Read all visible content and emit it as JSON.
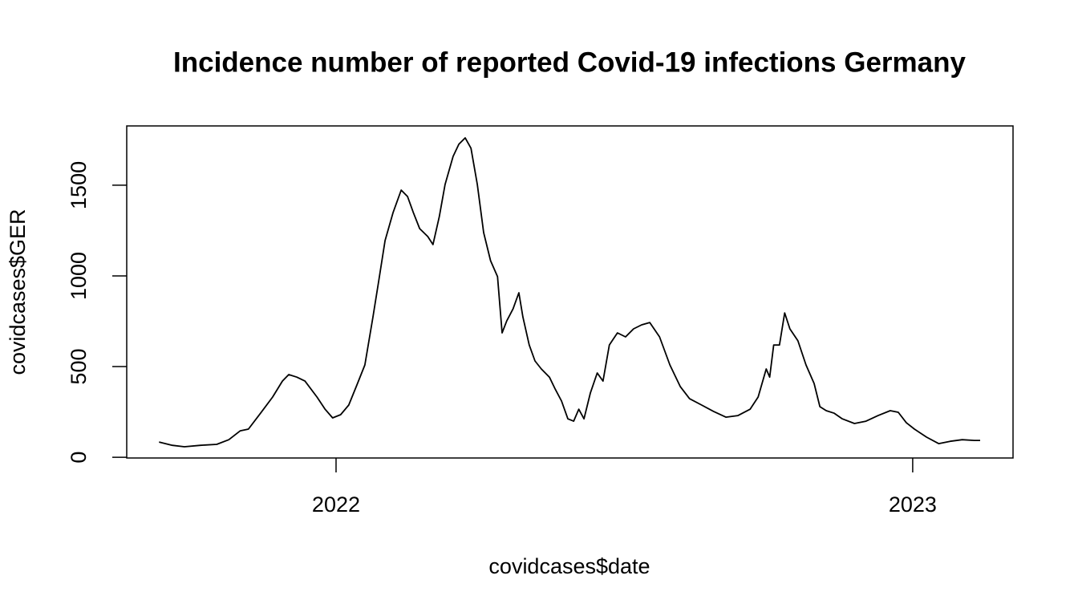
{
  "chart_data": {
    "type": "line",
    "title": "Incidence number of reported Covid-19 infections Germany",
    "x_label": "covidcases$date",
    "y_label": "covidcases$GER",
    "x": [
      2021.693,
      2021.716,
      2021.737,
      2021.765,
      2021.793,
      2021.814,
      2021.834,
      2021.848,
      2021.869,
      2021.89,
      2021.907,
      2021.918,
      2021.932,
      2021.946,
      2021.967,
      2021.981,
      2021.994,
      2022.008,
      2022.022,
      2022.036,
      2022.05,
      2022.064,
      2022.074,
      2022.085,
      2022.099,
      2022.113,
      2022.124,
      2022.134,
      2022.145,
      2022.159,
      2022.168,
      2022.179,
      2022.189,
      2022.203,
      2022.213,
      2022.224,
      2022.234,
      2022.245,
      2022.256,
      2022.268,
      2022.28,
      2022.288,
      2022.296,
      2022.307,
      2022.317,
      2022.324,
      2022.335,
      2022.345,
      2022.356,
      2022.37,
      2022.38,
      2022.391,
      2022.402,
      2022.412,
      2022.421,
      2022.43,
      2022.441,
      2022.453,
      2022.463,
      2022.474,
      2022.488,
      2022.502,
      2022.516,
      2022.53,
      2022.544,
      2022.561,
      2022.579,
      2022.597,
      2022.613,
      2022.634,
      2022.655,
      2022.676,
      2022.697,
      2022.718,
      2022.732,
      2022.746,
      2022.752,
      2022.759,
      2022.769,
      2022.778,
      2022.787,
      2022.801,
      2022.815,
      2022.829,
      2022.839,
      2022.85,
      2022.864,
      2022.878,
      2022.899,
      2022.919,
      2022.94,
      2022.961,
      2022.975,
      2022.989,
      2023.003,
      2023.024,
      2023.045,
      2023.065,
      2023.086,
      2023.107,
      2023.117
    ],
    "series": [
      {
        "color": "#000000",
        "values": [
          84,
          66,
          58,
          66,
          71,
          97,
          146,
          155,
          243,
          332,
          420,
          456,
          442,
          420,
          332,
          265,
          217,
          235,
          288,
          398,
          509,
          774,
          973,
          1195,
          1350,
          1473,
          1438,
          1350,
          1261,
          1217,
          1173,
          1327,
          1504,
          1659,
          1726,
          1761,
          1704,
          1504,
          1239,
          1084,
          996,
          686,
          752,
          819,
          907,
          774,
          619,
          531,
          487,
          442,
          376,
          310,
          212,
          199,
          265,
          212,
          354,
          465,
          420,
          619,
          686,
          664,
          708,
          730,
          743,
          664,
          509,
          389,
          323,
          288,
          252,
          221,
          230,
          265,
          332,
          487,
          442,
          619,
          619,
          796,
          708,
          642,
          509,
          407,
          279,
          257,
          243,
          212,
          186,
          199,
          230,
          257,
          248,
          190,
          155,
          111,
          75,
          88,
          97,
          93,
          93
        ]
      }
    ],
    "xlim": [
      2021.637,
      2023.174
    ],
    "xticks": [
      2022,
      2023
    ],
    "ylim": [
      -4,
      1827
    ],
    "yticks": [
      0,
      500,
      1000,
      1500
    ]
  }
}
